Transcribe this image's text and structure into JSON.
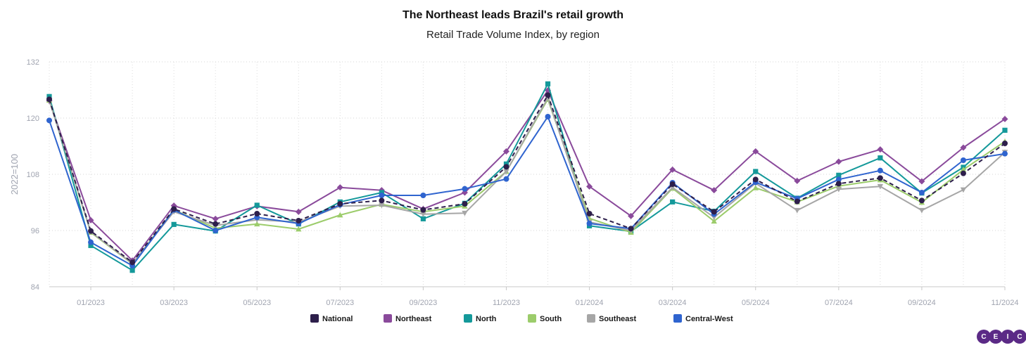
{
  "logo": {
    "letters": [
      "C",
      "E",
      "I",
      "C"
    ]
  },
  "chart_data": {
    "type": "line",
    "title": "The Northeast leads Brazil's retail growth",
    "subtitle": "Retail Trade Volume Index, by region",
    "ylabel": "2022=100",
    "xlabel": "",
    "ylim": [
      84,
      132
    ],
    "yticks": [
      84,
      96,
      108,
      120,
      132
    ],
    "x": [
      "12/2022",
      "01/2023",
      "02/2023",
      "03/2023",
      "04/2023",
      "05/2023",
      "06/2023",
      "07/2023",
      "08/2023",
      "09/2023",
      "10/2023",
      "11/2023",
      "12/2023",
      "01/2024",
      "02/2024",
      "03/2024",
      "04/2024",
      "05/2024",
      "06/2024",
      "07/2024",
      "08/2024",
      "09/2024",
      "10/2024",
      "11/2024"
    ],
    "xtick_labels": [
      "01/2023",
      "03/2023",
      "05/2023",
      "07/2023",
      "09/2023",
      "11/2023",
      "01/2024",
      "03/2024",
      "05/2024",
      "07/2024",
      "09/2024",
      "11/2024"
    ],
    "grid": true,
    "legend_position": "bottom",
    "series": [
      {
        "name": "National",
        "color": "#2d1f4b",
        "marker": "circle",
        "dashed": true,
        "values": [
          124.0,
          95.9,
          89.2,
          100.6,
          97.4,
          99.6,
          98.1,
          101.7,
          102.4,
          100.4,
          101.7,
          109.6,
          124.9,
          99.6,
          96.4,
          105.9,
          100.0,
          106.9,
          102.2,
          106.0,
          107.2,
          102.4,
          108.2,
          114.6
        ]
      },
      {
        "name": "Northeast",
        "color": "#8a4a9b",
        "marker": "diamond",
        "dashed": false,
        "values": [
          123.7,
          98.2,
          89.6,
          101.3,
          98.5,
          101.2,
          100.0,
          105.2,
          104.6,
          100.6,
          104.1,
          112.9,
          125.9,
          105.4,
          99.1,
          109.0,
          104.6,
          112.9,
          106.6,
          110.7,
          113.3,
          106.5,
          113.7,
          119.8
        ]
      },
      {
        "name": "North",
        "color": "#14999a",
        "marker": "square",
        "dashed": false,
        "values": [
          124.6,
          92.8,
          87.5,
          97.3,
          95.9,
          101.4,
          97.4,
          102.1,
          104.1,
          98.5,
          101.8,
          110.2,
          127.3,
          97.0,
          95.8,
          102.1,
          100.1,
          108.6,
          102.9,
          107.8,
          111.5,
          104.0,
          109.5,
          117.4
        ]
      },
      {
        "name": "South",
        "color": "#9ccc6b",
        "marker": "triangle-up",
        "dashed": false,
        "values": [
          123.8,
          95.6,
          88.9,
          100.4,
          96.5,
          97.4,
          96.3,
          99.3,
          101.6,
          100.0,
          101.2,
          108.6,
          124.0,
          98.6,
          95.6,
          105.0,
          98.0,
          105.1,
          102.1,
          105.5,
          106.8,
          102.0,
          109.0,
          115.0
        ]
      },
      {
        "name": "Southeast",
        "color": "#a6a6a6",
        "marker": "triangle-down",
        "dashed": false,
        "values": [
          123.8,
          95.7,
          89.0,
          100.0,
          97.1,
          98.3,
          97.8,
          101.2,
          101.4,
          99.5,
          99.7,
          108.6,
          124.3,
          97.8,
          96.0,
          105.2,
          98.8,
          106.1,
          100.3,
          104.8,
          105.4,
          100.3,
          104.7,
          112.7
        ]
      },
      {
        "name": "Central-West",
        "color": "#2f64cf",
        "marker": "circle",
        "dashed": false,
        "values": [
          119.5,
          93.5,
          88.5,
          100.4,
          96.0,
          98.8,
          97.5,
          101.5,
          103.5,
          103.5,
          104.9,
          107.0,
          120.3,
          97.5,
          96.4,
          106.2,
          99.5,
          106.3,
          102.8,
          106.9,
          108.8,
          104.1,
          111.0,
          112.4
        ]
      }
    ]
  }
}
